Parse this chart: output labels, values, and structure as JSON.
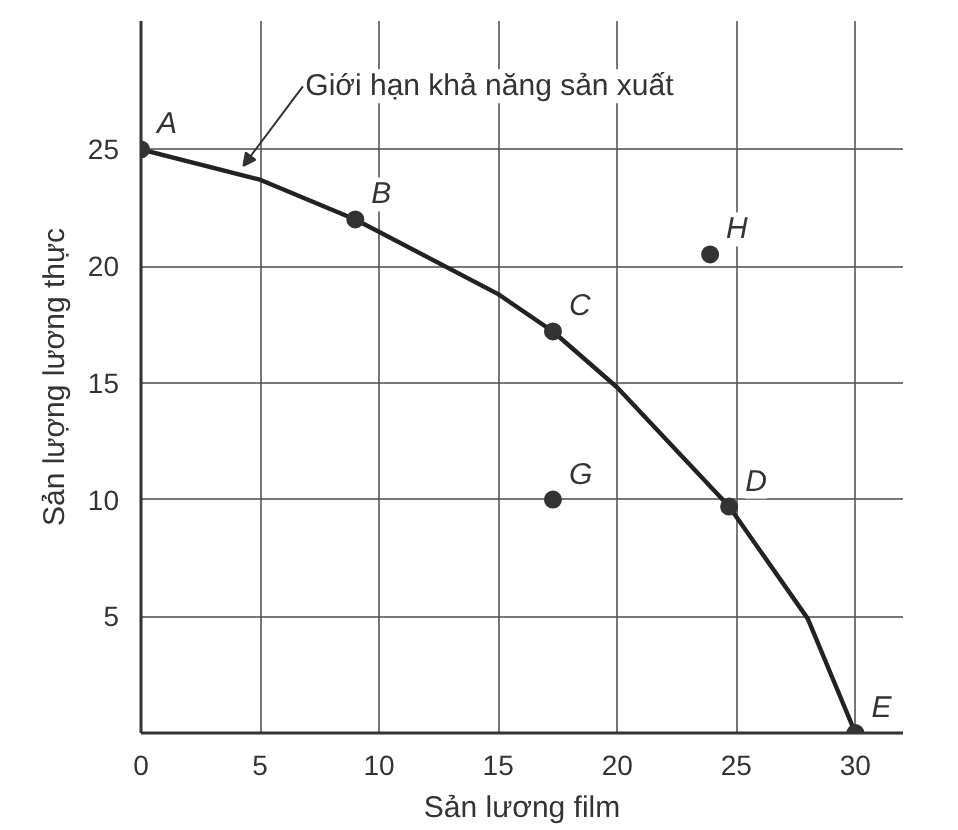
{
  "chart_data": {
    "type": "line",
    "xlabel": "Sản lương film",
    "ylabel": "Sản lượng lương thực",
    "xlim": [
      0,
      32
    ],
    "ylim": [
      0,
      30.5
    ],
    "xticks": [
      0,
      5,
      10,
      15,
      20,
      25,
      30
    ],
    "yticks": [
      {
        "value": 0,
        "label": null
      },
      5,
      10,
      15,
      20,
      25
    ],
    "grid": true,
    "series": [
      {
        "color": "#222222",
        "marker": "none",
        "line_style": "solid",
        "x": [
          0,
          5,
          9,
          15,
          17.3,
          20,
          24.7,
          28,
          30
        ],
        "values": [
          25,
          23.7,
          22,
          18.8,
          17.2,
          14.8,
          9.7,
          4.9,
          0
        ]
      },
      {
        "type": "scatter",
        "color": "#333333",
        "marker": "circle",
        "x": [
          0,
          9,
          17.3,
          24.7,
          30,
          17.3,
          23.9
        ],
        "values": [
          25,
          22,
          17.2,
          9.7,
          0,
          10,
          20.5
        ]
      }
    ],
    "annotations": [
      {
        "text": "A",
        "x": 0,
        "y": 25
      },
      {
        "text": "B",
        "x": 9,
        "y": 22
      },
      {
        "text": "C",
        "x": 17.3,
        "y": 17.2
      },
      {
        "text": "D",
        "x": 24.7,
        "y": 9.7
      },
      {
        "text": "E",
        "x": 30,
        "y": 0
      },
      {
        "text": "G",
        "x": 17.3,
        "y": 10
      },
      {
        "text": "H",
        "x": 23.9,
        "y": 20.5
      },
      {
        "text": "Giới hạn khả năng sản xuất",
        "x": 4.3,
        "y": 24
      }
    ]
  }
}
